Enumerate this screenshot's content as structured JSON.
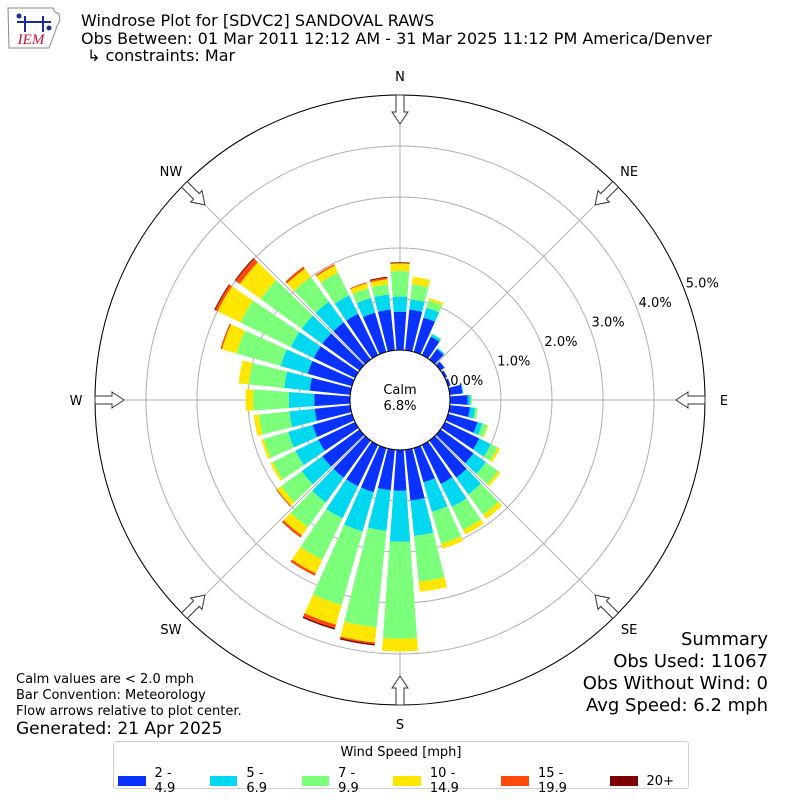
{
  "header": {
    "logo_text": "IEM",
    "title_line1": "Windrose Plot for [SDVC2] SANDOVAL RAWS",
    "title_line2": "Obs Between: 01 Mar 2011 12:12 AM - 31 Mar 2025 11:12 PM America/Denver",
    "title_line3": "↳ constraints: Mar"
  },
  "center": {
    "label": "Calm",
    "value": "6.8%"
  },
  "summary": {
    "heading": "Summary",
    "obs_used": "Obs Used: 11067",
    "obs_without_wind": "Obs Without Wind: 0",
    "avg_speed": "Avg Speed: 6.2 mph"
  },
  "notes": {
    "line1": "Calm values are < 2.0 mph",
    "line2": "Bar Convention: Meteorology",
    "line3": "Flow arrows relative to plot center.",
    "generated": "Generated: 21 Apr 2025"
  },
  "legend": {
    "title": "Wind Speed [mph]",
    "items": [
      {
        "label": "2 - 4.9",
        "color": "#0a32ff"
      },
      {
        "label": "5 - 6.9",
        "color": "#00d7f0"
      },
      {
        "label": "7 - 9.9",
        "color": "#7cff7a"
      },
      {
        "label": "10 - 14.9",
        "color": "#ffe600"
      },
      {
        "label": "15 - 19.9",
        "color": "#ff4a0c"
      },
      {
        "label": "20+",
        "color": "#7f0000"
      }
    ]
  },
  "chart_data": {
    "type": "windrose",
    "directions": [
      "N",
      "NE",
      "E",
      "SE",
      "S",
      "SW",
      "W",
      "NW"
    ],
    "radial_ticks": [
      "0.0%",
      "1.0%",
      "2.0%",
      "3.0%",
      "4.0%",
      "5.0%"
    ],
    "radial_max": 5.0,
    "calm_percent": 6.8,
    "bin_width_deg": 10,
    "speed_bins": [
      "2 - 4.9",
      "5 - 6.9",
      "7 - 9.9",
      "10 - 14.9",
      "15 - 19.9",
      "20+"
    ],
    "bins": [
      {
        "dir": 0,
        "values": [
          0.75,
          0.3,
          0.5,
          0.15,
          0.0,
          0.02
        ]
      },
      {
        "dir": 10,
        "values": [
          0.8,
          0.2,
          0.3,
          0.15,
          0.0,
          0.0
        ]
      },
      {
        "dir": 20,
        "values": [
          0.7,
          0.2,
          0.15,
          0.05,
          0.0,
          0.0
        ]
      },
      {
        "dir": 30,
        "values": [
          0.4,
          0.05,
          0.02,
          0.0,
          0.0,
          0.0
        ]
      },
      {
        "dir": 40,
        "values": [
          0.25,
          0.03,
          0.0,
          0.0,
          0.0,
          0.0
        ]
      },
      {
        "dir": 50,
        "values": [
          0.1,
          0.0,
          0.0,
          0.0,
          0.0,
          0.0
        ]
      },
      {
        "dir": 60,
        "values": [
          0.05,
          0.0,
          0.0,
          0.0,
          0.0,
          0.0
        ]
      },
      {
        "dir": 70,
        "values": [
          0.05,
          0.0,
          0.0,
          0.0,
          0.0,
          0.0
        ]
      },
      {
        "dir": 80,
        "values": [
          0.25,
          0.02,
          0.0,
          0.0,
          0.0,
          0.0
        ]
      },
      {
        "dir": 90,
        "values": [
          0.35,
          0.05,
          0.03,
          0.0,
          0.0,
          0.0
        ]
      },
      {
        "dir": 100,
        "values": [
          0.4,
          0.1,
          0.05,
          0.0,
          0.0,
          0.0
        ]
      },
      {
        "dir": 110,
        "values": [
          0.6,
          0.1,
          0.1,
          0.02,
          0.0,
          0.0
        ]
      },
      {
        "dir": 120,
        "values": [
          0.75,
          0.25,
          0.15,
          0.05,
          0.0,
          0.0
        ]
      },
      {
        "dir": 130,
        "values": [
          0.8,
          0.3,
          0.3,
          0.05,
          0.0,
          0.0
        ]
      },
      {
        "dir": 140,
        "values": [
          0.9,
          0.4,
          0.5,
          0.1,
          0.0,
          0.0
        ]
      },
      {
        "dir": 150,
        "values": [
          0.85,
          0.5,
          0.5,
          0.1,
          0.0,
          0.0
        ]
      },
      {
        "dir": 160,
        "values": [
          0.7,
          0.6,
          0.65,
          0.1,
          0.0,
          0.0
        ]
      },
      {
        "dir": 170,
        "values": [
          1.0,
          0.7,
          0.9,
          0.2,
          0.0,
          0.0
        ]
      },
      {
        "dir": 180,
        "values": [
          0.8,
          1.0,
          1.9,
          0.25,
          0.0,
          0.0
        ]
      },
      {
        "dir": 190,
        "values": [
          0.8,
          0.8,
          1.9,
          0.3,
          0.03,
          0.03
        ]
      },
      {
        "dir": 200,
        "values": [
          0.9,
          0.8,
          1.5,
          0.4,
          0.07,
          0.03
        ]
      },
      {
        "dir": 210,
        "values": [
          0.9,
          0.7,
          0.9,
          0.3,
          0.05,
          0.0
        ]
      },
      {
        "dir": 220,
        "values": [
          0.9,
          0.6,
          0.6,
          0.2,
          0.05,
          0.0
        ]
      },
      {
        "dir": 230,
        "values": [
          0.9,
          0.5,
          0.5,
          0.1,
          0.02,
          0.0
        ]
      },
      {
        "dir": 240,
        "values": [
          0.8,
          0.5,
          0.5,
          0.05,
          0.0,
          0.0
        ]
      },
      {
        "dir": 250,
        "values": [
          0.8,
          0.5,
          0.5,
          0.05,
          0.0,
          0.0
        ]
      },
      {
        "dir": 260,
        "values": [
          0.7,
          0.5,
          0.6,
          0.1,
          0.0,
          0.0
        ]
      },
      {
        "dir": 270,
        "values": [
          0.7,
          0.5,
          0.7,
          0.15,
          0.0,
          0.0
        ]
      },
      {
        "dir": 280,
        "values": [
          0.8,
          0.5,
          0.7,
          0.2,
          0.0,
          0.0
        ]
      },
      {
        "dir": 290,
        "values": [
          0.9,
          0.55,
          0.9,
          0.3,
          0.03,
          0.0
        ]
      },
      {
        "dir": 300,
        "values": [
          0.9,
          0.5,
          1.1,
          0.5,
          0.05,
          0.02
        ]
      },
      {
        "dir": 310,
        "values": [
          0.9,
          0.5,
          1.0,
          0.5,
          0.1,
          0.02
        ]
      },
      {
        "dir": 320,
        "values": [
          0.9,
          0.5,
          0.6,
          0.2,
          0.05,
          0.0
        ]
      },
      {
        "dir": 330,
        "values": [
          0.9,
          0.4,
          0.5,
          0.15,
          0.03,
          0.0
        ]
      },
      {
        "dir": 340,
        "values": [
          0.8,
          0.3,
          0.2,
          0.1,
          0.02,
          0.0
        ]
      },
      {
        "dir": 350,
        "values": [
          0.8,
          0.3,
          0.2,
          0.1,
          0.03,
          0.02
        ]
      }
    ]
  }
}
